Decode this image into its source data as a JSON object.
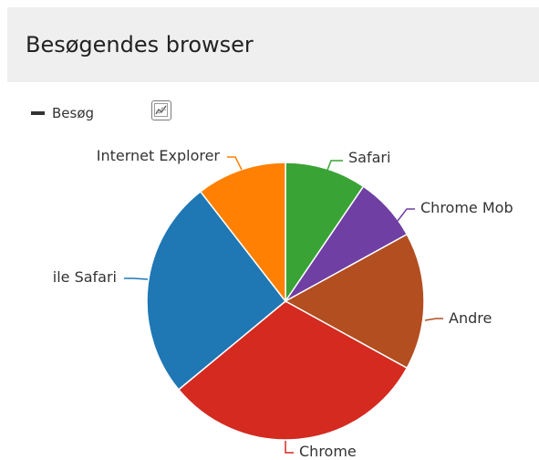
{
  "header": {
    "title": "Besøgendes browser"
  },
  "legend": {
    "series_label": "Besøg",
    "toggle_icon": "line-chart-icon"
  },
  "chart_data": {
    "type": "pie",
    "series": [
      {
        "name": "Besøg",
        "slices": [
          {
            "label": "Safari",
            "value": 9.5,
            "color": "#3aa335"
          },
          {
            "label": "Chrome Mob",
            "value": 7.5,
            "color": "#6f3fa3"
          },
          {
            "label": "Andre",
            "value": 16.0,
            "color": "#b24e20"
          },
          {
            "label": "Chrome",
            "value": 31.0,
            "color": "#d42a20"
          },
          {
            "label": "ile Safari",
            "value": 25.5,
            "color": "#1f77b4"
          },
          {
            "label": "Internet Explorer",
            "value": 10.5,
            "color": "#ff8002"
          }
        ]
      }
    ],
    "legend_position": "top-left"
  }
}
